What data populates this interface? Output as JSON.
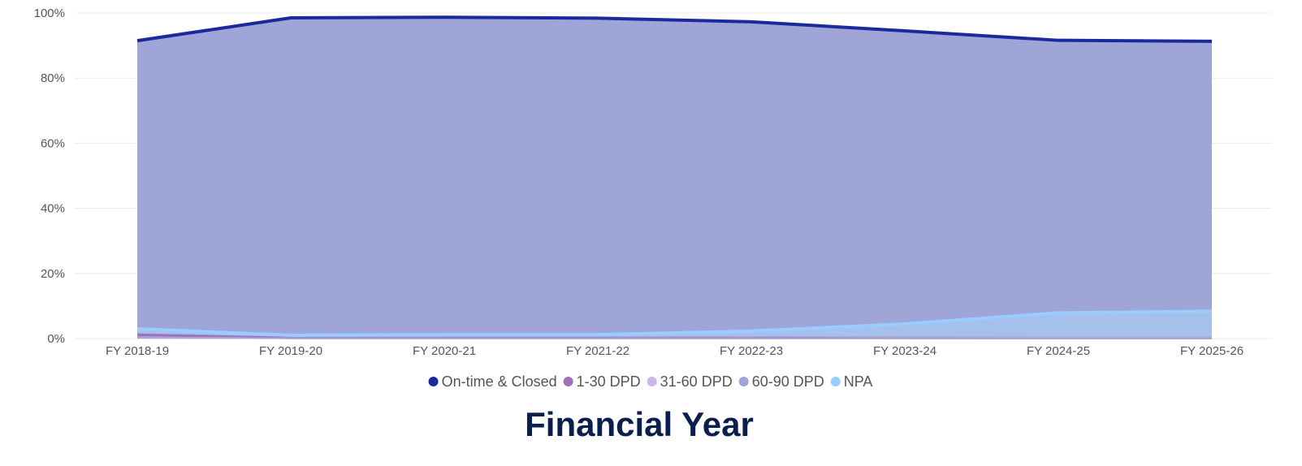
{
  "chart_data": {
    "type": "area",
    "categories": [
      "FY 2018-19",
      "FY 2019-20",
      "FY 2020-21",
      "FY 2021-22",
      "FY 2022-23",
      "FY 2023-24",
      "FY 2024-25",
      "FY 2025-26"
    ],
    "series": [
      {
        "name": "On-time & Closed",
        "color": "#1a2a9c",
        "values": [
          91.5,
          98.5,
          98.7,
          98.4,
          97.3,
          94.5,
          91.6,
          91.3
        ]
      },
      {
        "name": "1-30 DPD",
        "color": "#a070b8",
        "values": [
          1.2,
          0.2,
          0.2,
          0.2,
          0.2,
          0.2,
          0.2,
          0.2
        ]
      },
      {
        "name": "31-60 DPD",
        "color": "#c9b8e8",
        "values": [
          0.3,
          0.1,
          0.1,
          0.1,
          0.1,
          0.2,
          0.3,
          0.3
        ]
      },
      {
        "name": "60-90 DPD",
        "color": "#a0a5d8",
        "values": [
          0.2,
          0.1,
          0.1,
          0.1,
          0.1,
          0.2,
          0.2,
          0.2
        ]
      },
      {
        "name": "NPA",
        "color": "#99ccff",
        "values": [
          3.0,
          1.0,
          1.2,
          1.2,
          2.3,
          4.5,
          7.9,
          8.4
        ]
      }
    ],
    "area_fill_color": "#a0a5d8",
    "npa_fill_color": "#a6c4ee",
    "ylim": [
      0,
      100
    ],
    "yticks": [
      0,
      20,
      40,
      60,
      80,
      100
    ],
    "ytick_labels": [
      "0%",
      "20%",
      "40%",
      "60%",
      "80%",
      "100%"
    ],
    "xlabel": "Financial Year",
    "grid": true,
    "legend_position": "bottom-center"
  }
}
